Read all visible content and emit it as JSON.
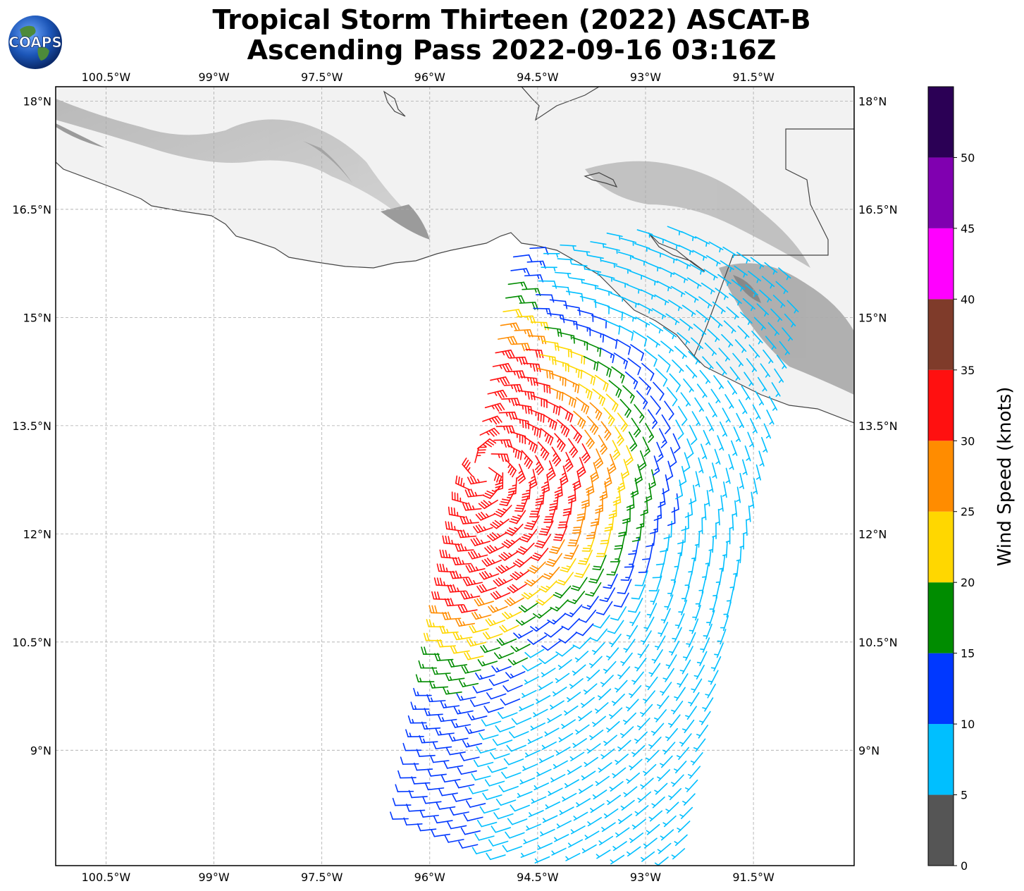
{
  "header": {
    "title_line1": "Tropical Storm Thirteen (2022) ASCAT-B",
    "title_line2": "Ascending Pass 2022-09-16 03:16Z",
    "logo_text": "COAPS"
  },
  "map": {
    "lon_range": [
      -101.2,
      -90.1
    ],
    "lat_range": [
      7.4,
      18.2
    ],
    "lon_ticks": [
      {
        "value": -100.5,
        "label": "100.5°W"
      },
      {
        "value": -99.0,
        "label": "99°W"
      },
      {
        "value": -97.5,
        "label": "97.5°W"
      },
      {
        "value": -96.0,
        "label": "96°W"
      },
      {
        "value": -94.5,
        "label": "94.5°W"
      },
      {
        "value": -93.0,
        "label": "93°W"
      },
      {
        "value": -91.5,
        "label": "91.5°W"
      }
    ],
    "lat_ticks": [
      {
        "value": 18.0,
        "label": "18°N"
      },
      {
        "value": 16.5,
        "label": "16.5°N"
      },
      {
        "value": 15.0,
        "label": "15°N"
      },
      {
        "value": 13.5,
        "label": "13.5°N"
      },
      {
        "value": 12.0,
        "label": "12°N"
      },
      {
        "value": 10.5,
        "label": "10.5°N"
      },
      {
        "value": 9.0,
        "label": "9°N"
      }
    ],
    "gridlines": true,
    "land_color": "#f2f2f2",
    "coastline_color": "#444444",
    "storm_center": {
      "lon": -95.2,
      "lat": 12.9
    }
  },
  "colorbar": {
    "label": "Wind Speed (knots)",
    "ticks": [
      "0",
      "5",
      "10",
      "15",
      "20",
      "25",
      "30",
      "35",
      "40",
      "45",
      "50"
    ],
    "bins": [
      {
        "min": 0,
        "max": 5,
        "color": "#555555"
      },
      {
        "min": 5,
        "max": 10,
        "color": "#00bfff"
      },
      {
        "min": 10,
        "max": 15,
        "color": "#0038ff"
      },
      {
        "min": 15,
        "max": 20,
        "color": "#008c00"
      },
      {
        "min": 20,
        "max": 25,
        "color": "#ffd700"
      },
      {
        "min": 25,
        "max": 30,
        "color": "#ff8c00"
      },
      {
        "min": 30,
        "max": 35,
        "color": "#ff1010"
      },
      {
        "min": 35,
        "max": 40,
        "color": "#7f3b2a"
      },
      {
        "min": 40,
        "max": 45,
        "color": "#ff00ff"
      },
      {
        "min": 45,
        "max": 50,
        "color": "#8000b0"
      },
      {
        "min": 50,
        "max": 55,
        "color": "#2b0055"
      }
    ]
  }
}
